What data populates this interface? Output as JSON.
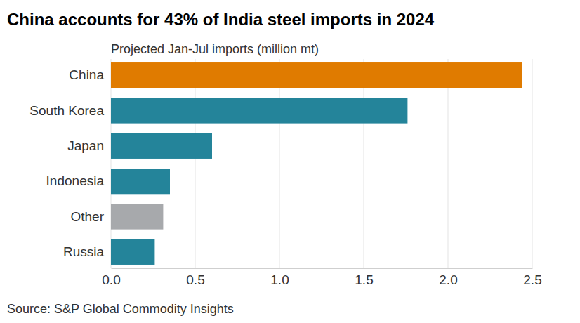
{
  "chart_data": {
    "type": "bar",
    "orientation": "horizontal",
    "title": "China accounts for 43% of India steel imports in 2024",
    "subtitle": "Projected Jan-Jul imports (million mt)",
    "source": "Source: S&P Global Commodity Insights",
    "categories": [
      "China",
      "South Korea",
      "Japan",
      "Indonesia",
      "Other",
      "Russia"
    ],
    "values": [
      2.44,
      1.76,
      0.6,
      0.35,
      0.31,
      0.26
    ],
    "colors": [
      "#e07b00",
      "#24849a",
      "#24849a",
      "#24849a",
      "#a7a9ac",
      "#24849a"
    ],
    "xlim": [
      0,
      2.5
    ],
    "xticks": [
      {
        "value": 0,
        "label": "0.0"
      },
      0.5,
      {
        "value": 1,
        "label": "1.0"
      },
      1.5,
      {
        "value": 2,
        "label": "2.0"
      },
      2.5
    ],
    "grid": true
  }
}
